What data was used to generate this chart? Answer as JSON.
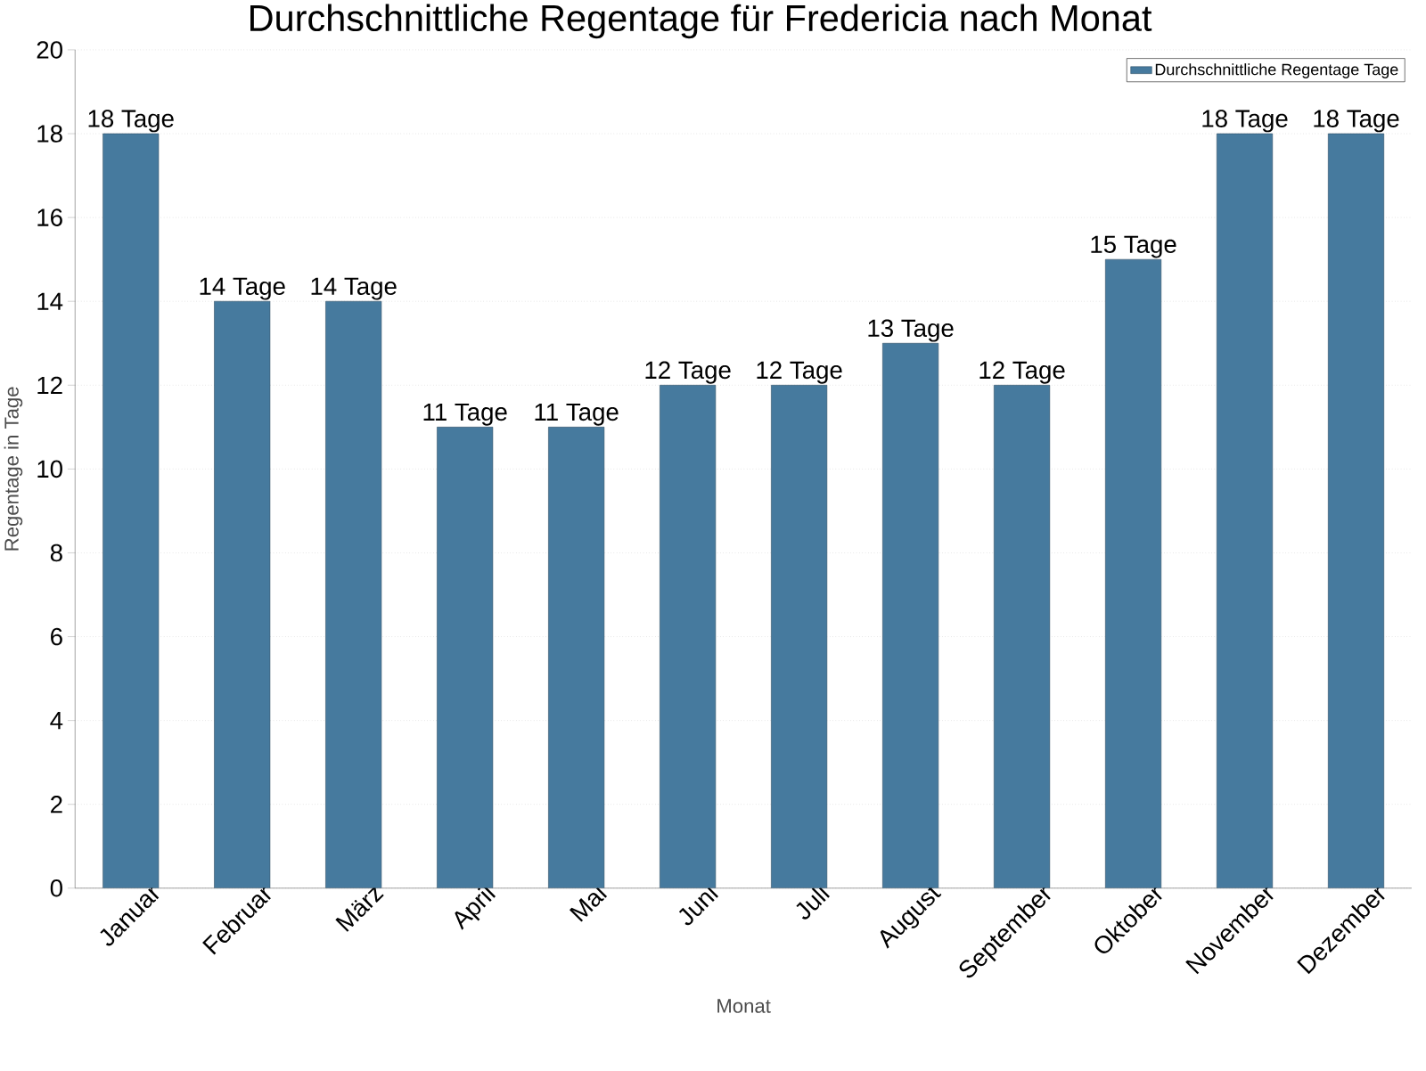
{
  "chart_data": {
    "type": "bar",
    "title": "Durchschnittliche Regentage für Fredericia nach Monat",
    "xlabel": "Monat",
    "ylabel": "Regentage in Tage",
    "categories": [
      "Januar",
      "Februar",
      "März",
      "April",
      "Mai",
      "Juni",
      "Juli",
      "August",
      "September",
      "Oktober",
      "November",
      "Dezember"
    ],
    "series": [
      {
        "name": "Durchschnittliche Regentage Tage",
        "color": "#467a9e",
        "values": [
          18,
          14,
          14,
          11,
          11,
          12,
          12,
          13,
          12,
          15,
          18,
          18
        ],
        "value_labels": [
          "18 Tage",
          "14 Tage",
          "14 Tage",
          "11 Tage",
          "11 Tage",
          "12 Tage",
          "12 Tage",
          "13 Tage",
          "12 Tage",
          "15 Tage",
          "18 Tage",
          "18 Tage"
        ]
      }
    ],
    "ylim": [
      0,
      20
    ],
    "yticks": [
      0,
      2,
      4,
      6,
      8,
      10,
      12,
      14,
      16,
      18,
      20
    ],
    "grid": "y",
    "legend": "top right"
  }
}
